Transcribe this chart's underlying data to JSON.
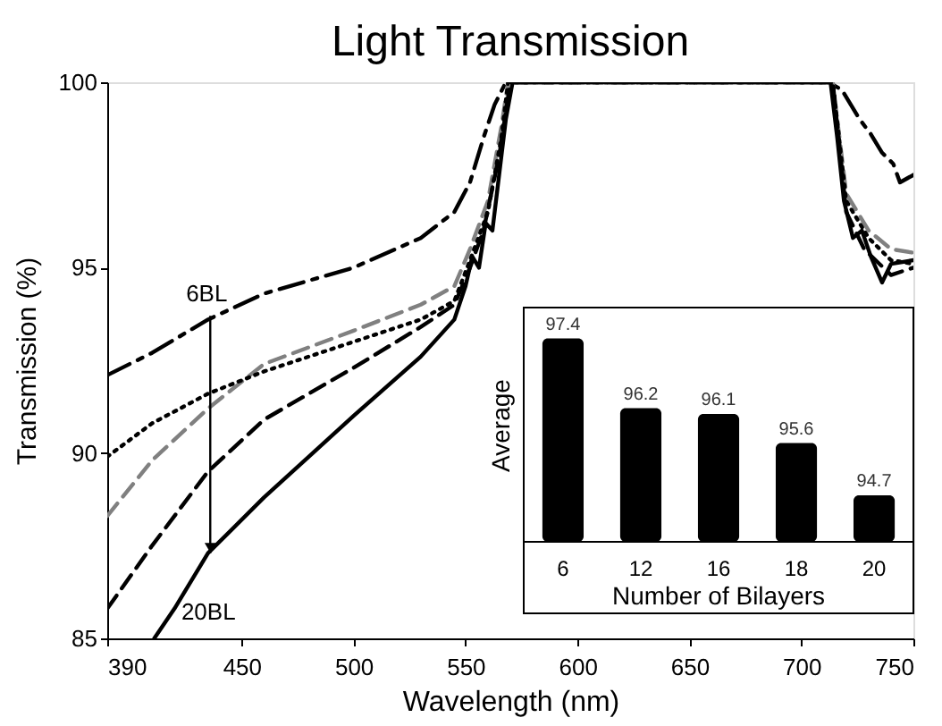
{
  "chart_data": [
    {
      "type": "line",
      "title": "Light Transmission",
      "xlabel": "Wavelength (nm)",
      "ylabel": "Transmission (%)",
      "xlim": [
        390,
        750
      ],
      "xticks": [
        390,
        450,
        500,
        550,
        600,
        650,
        700,
        750
      ],
      "ylim": [
        85,
        100
      ],
      "yticks": [
        85,
        90,
        95,
        100
      ],
      "grid": false,
      "annotations": [
        {
          "text": "6BL",
          "x": 436,
          "y": 93.7
        },
        {
          "text": "20BL",
          "x": 436,
          "y": 87.3
        }
      ],
      "series": [
        {
          "color": "#000000",
          "line_style": "dashdot",
          "x": [
            390,
            410,
            435,
            460,
            500,
            530,
            545,
            552,
            558,
            563,
            568,
            712,
            718,
            722,
            726,
            731,
            736,
            741,
            744,
            750
          ],
          "values": [
            92.1,
            92.7,
            93.6,
            94.3,
            95.0,
            95.8,
            96.5,
            97.3,
            98.5,
            99.4,
            100,
            100,
            99.8,
            99.4,
            99.0,
            98.6,
            98.1,
            97.8,
            97.3,
            97.5
          ]
        },
        {
          "color": "#808080",
          "line_style": "dashed",
          "x": [
            390,
            410,
            435,
            460,
            500,
            530,
            545,
            552,
            560,
            566,
            569,
            714,
            720,
            730,
            740,
            750
          ],
          "values": [
            88.3,
            89.8,
            91.2,
            92.4,
            93.3,
            94.0,
            94.5,
            95.5,
            96.8,
            98.8,
            100,
            100,
            97.0,
            96.0,
            95.5,
            95.4
          ]
        },
        {
          "color": "#000000",
          "line_style": "dotted",
          "x": [
            390,
            410,
            435,
            460,
            500,
            530,
            545,
            552,
            560,
            566,
            569,
            714,
            720,
            730,
            740,
            750
          ],
          "values": [
            89.9,
            90.8,
            91.6,
            92.2,
            93.0,
            93.6,
            94.1,
            95.2,
            96.5,
            98.5,
            100,
            100,
            96.8,
            95.8,
            95.2,
            95.1
          ]
        },
        {
          "color": "#000000",
          "line_style": "dashed",
          "x": [
            390,
            410,
            435,
            460,
            500,
            530,
            545,
            552,
            558,
            565,
            570,
            714,
            720,
            728,
            740,
            750
          ],
          "values": [
            85.8,
            87.5,
            89.5,
            90.9,
            92.3,
            93.4,
            94.0,
            95.0,
            96.0,
            98.0,
            100,
            100,
            96.5,
            95.5,
            94.8,
            95.0
          ]
        },
        {
          "color": "#000000",
          "line_style": "solid",
          "x": [
            411,
            420,
            435,
            460,
            500,
            530,
            545,
            550,
            553,
            556,
            559,
            562,
            565,
            568,
            571,
            713,
            716,
            719,
            723,
            727,
            731,
            736,
            740,
            750
          ],
          "values": [
            85.0,
            85.8,
            87.3,
            88.8,
            91.0,
            92.6,
            93.6,
            94.5,
            95.3,
            95.0,
            96.2,
            96.0,
            97.5,
            99.0,
            100,
            100,
            98.5,
            96.8,
            95.8,
            96.0,
            95.3,
            94.6,
            95.1,
            95.2
          ]
        }
      ]
    },
    {
      "type": "bar",
      "xlabel": "Number of Bilayers",
      "ylabel": "Average",
      "categories": [
        "6",
        "12",
        "16",
        "18",
        "20"
      ],
      "values": [
        97.4,
        96.2,
        96.1,
        95.6,
        94.7
      ],
      "color": "#000000",
      "data_labels": true,
      "ylim": [
        93.9,
        97.9
      ]
    }
  ]
}
